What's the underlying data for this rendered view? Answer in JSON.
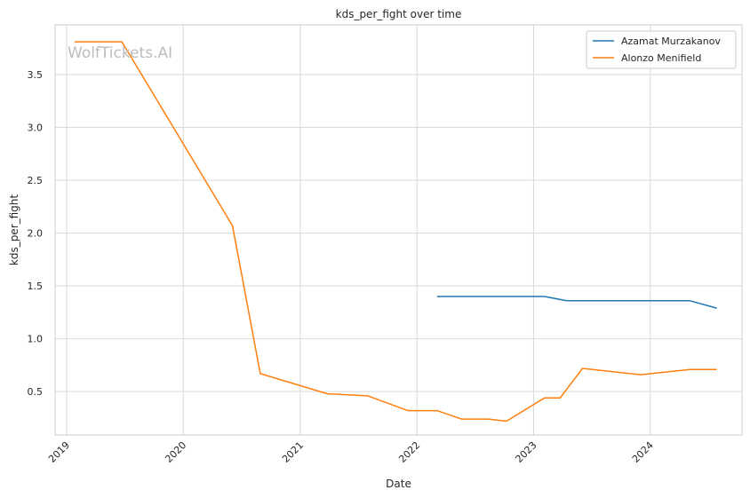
{
  "chart_data": {
    "type": "line",
    "title": "kds_per_fight over time",
    "xlabel": "Date",
    "ylabel": "kds_per_fight",
    "watermark": "WolfTickets.AI",
    "x_ticks": [
      "2019",
      "2020",
      "2021",
      "2022",
      "2023",
      "2024"
    ],
    "y_ticks": [
      "0.5",
      "1.0",
      "1.5",
      "2.0",
      "2.5",
      "3.0",
      "3.5"
    ],
    "xlim": [
      "2018-11-26",
      "2024-10-14"
    ],
    "ylim": [
      0.09,
      3.97
    ],
    "grid": true,
    "legend_position": "top-right",
    "series": [
      {
        "name": "Azamat Murzakanov",
        "color": "#1f77b4",
        "points": [
          [
            "2022-03-05",
            1.4
          ],
          [
            "2023-02-04",
            1.4
          ],
          [
            "2023-04-15",
            1.36
          ],
          [
            "2024-05-04",
            1.36
          ],
          [
            "2024-07-27",
            1.29
          ]
        ]
      },
      {
        "name": "Alonzo Menifield",
        "color": "#ff7f0e",
        "points": [
          [
            "2019-01-26",
            3.81
          ],
          [
            "2019-06-23",
            3.81
          ],
          [
            "2020-06-03",
            2.07
          ],
          [
            "2020-08-29",
            0.67
          ],
          [
            "2021-03-27",
            0.48
          ],
          [
            "2021-07-31",
            0.46
          ],
          [
            "2021-12-04",
            0.32
          ],
          [
            "2022-03-05",
            0.32
          ],
          [
            "2022-05-21",
            0.24
          ],
          [
            "2022-08-13",
            0.24
          ],
          [
            "2022-10-08",
            0.22
          ],
          [
            "2023-02-04",
            0.44
          ],
          [
            "2023-03-25",
            0.44
          ],
          [
            "2023-06-03",
            0.72
          ],
          [
            "2023-12-02",
            0.66
          ],
          [
            "2024-05-04",
            0.71
          ],
          [
            "2024-07-27",
            0.71
          ]
        ]
      }
    ]
  }
}
